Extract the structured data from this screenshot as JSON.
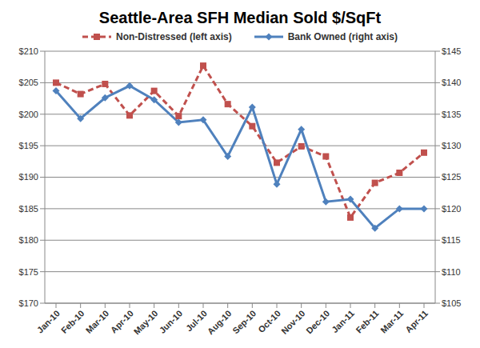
{
  "chart_data": {
    "type": "line",
    "title": "Seattle-Area SFH Median Sold $/SqFt",
    "categories": [
      "Jan-10",
      "Feb-10",
      "Mar-10",
      "Apr-10",
      "May-10",
      "Jun-10",
      "Jul-10",
      "Aug-10",
      "Sep-10",
      "Oct-10",
      "Nov-10",
      "Dec-10",
      "Jan-11",
      "Feb-11",
      "Mar-11",
      "Apr-11"
    ],
    "series": [
      {
        "name": "Non-Distressed (left axis)",
        "color": "#c0504d",
        "marker": "square",
        "line_style": "dashed",
        "values": [
          205.0,
          203.2,
          204.8,
          199.8,
          203.7,
          199.7,
          207.7,
          201.6,
          198.1,
          192.3,
          194.9,
          193.3,
          183.6,
          189.1,
          190.7,
          193.9
        ]
      },
      {
        "name": "Bank Owned (right axis)",
        "color": "#4f81bd",
        "marker": "diamond",
        "line_style": "solid",
        "axis": "y2",
        "values": [
          138.7,
          134.3,
          137.6,
          139.5,
          137.3,
          133.7,
          134.1,
          128.3,
          136.1,
          123.9,
          132.6,
          121.1,
          121.5,
          116.9,
          120.0,
          120.0
        ]
      }
    ],
    "ylim": [
      170,
      210
    ],
    "yticks": [
      {
        "value": 170,
        "label": "$170"
      },
      {
        "value": 175,
        "label": "$175"
      },
      {
        "value": 180,
        "label": "$180"
      },
      {
        "value": 185,
        "label": "$185"
      },
      {
        "value": 190,
        "label": "$190"
      },
      {
        "value": 195,
        "label": "$195"
      },
      {
        "value": 200,
        "label": "$200"
      },
      {
        "value": 205,
        "label": "$205"
      },
      {
        "value": 210,
        "label": "$210"
      }
    ],
    "y2lim": [
      105,
      145
    ],
    "y2ticks": [
      {
        "value": 105,
        "label": "$105"
      },
      {
        "value": 110,
        "label": "$110"
      },
      {
        "value": 115,
        "label": "$115"
      },
      {
        "value": 120,
        "label": "$120"
      },
      {
        "value": 125,
        "label": "$125"
      },
      {
        "value": 130,
        "label": "$130"
      },
      {
        "value": 135,
        "label": "$135"
      },
      {
        "value": 140,
        "label": "$140"
      },
      {
        "value": 145,
        "label": "$145"
      }
    ],
    "grid": true,
    "legend": "top"
  }
}
